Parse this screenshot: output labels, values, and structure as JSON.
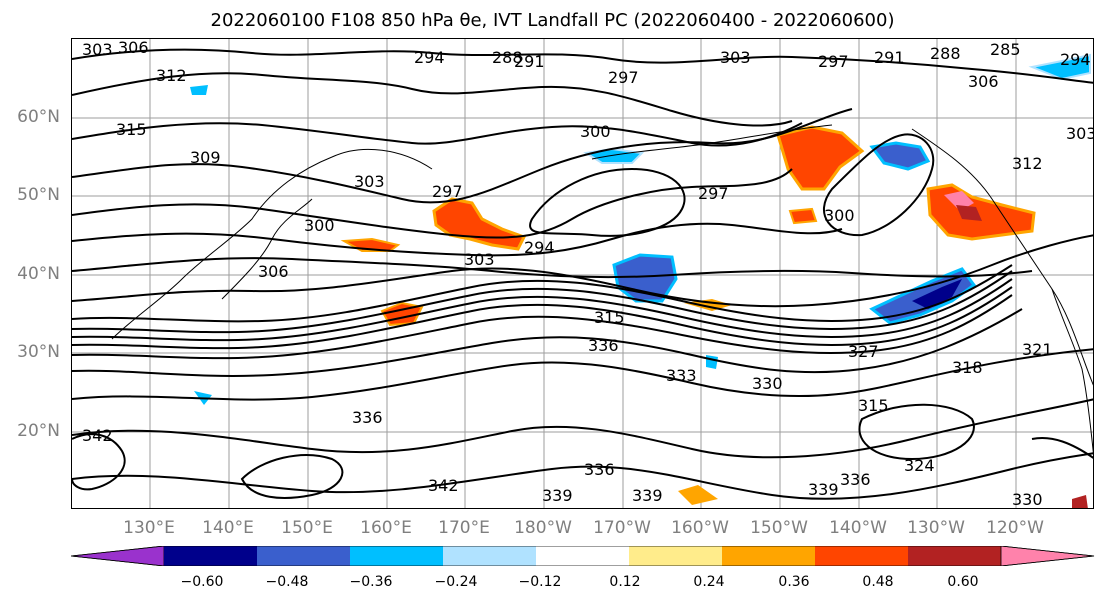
{
  "title": "2022060100 F108 850 hPa θe, IVT Landfall PC (2022060400 - 2022060600)",
  "lat_labels": [
    "60°N",
    "50°N",
    "40°N",
    "30°N",
    "20°N"
  ],
  "lon_labels": [
    "130°E",
    "140°E",
    "150°E",
    "160°E",
    "170°E",
    "180°W",
    "170°W",
    "160°W",
    "150°W",
    "140°W",
    "130°W",
    "120°W"
  ],
  "colorbar": {
    "ticks": [
      "−0.60",
      "−0.48",
      "−0.36",
      "−0.24",
      "−0.12",
      "0.12",
      "0.24",
      "0.36",
      "0.48",
      "0.60"
    ],
    "colors": [
      "#9a32cd",
      "#00008b",
      "#3a5fcd",
      "#00bfff",
      "#b0e2ff",
      "#ffffff",
      "#ffec8b",
      "#ffa500",
      "#ff4500",
      "#b22222",
      "#ff82ab"
    ]
  },
  "contour_labels": [
    "303",
    "306",
    "312",
    "294",
    "288",
    "291",
    "297",
    "303",
    "297",
    "291",
    "288",
    "285",
    "294",
    "306",
    "303",
    "315",
    "309",
    "303",
    "300",
    "297",
    "297",
    "300",
    "312",
    "300",
    "294",
    "306",
    "303",
    "315",
    "336",
    "333",
    "330",
    "327",
    "321",
    "318",
    "336",
    "342",
    "339",
    "336",
    "339",
    "336",
    "339",
    "342",
    "315",
    "324",
    "330"
  ]
}
